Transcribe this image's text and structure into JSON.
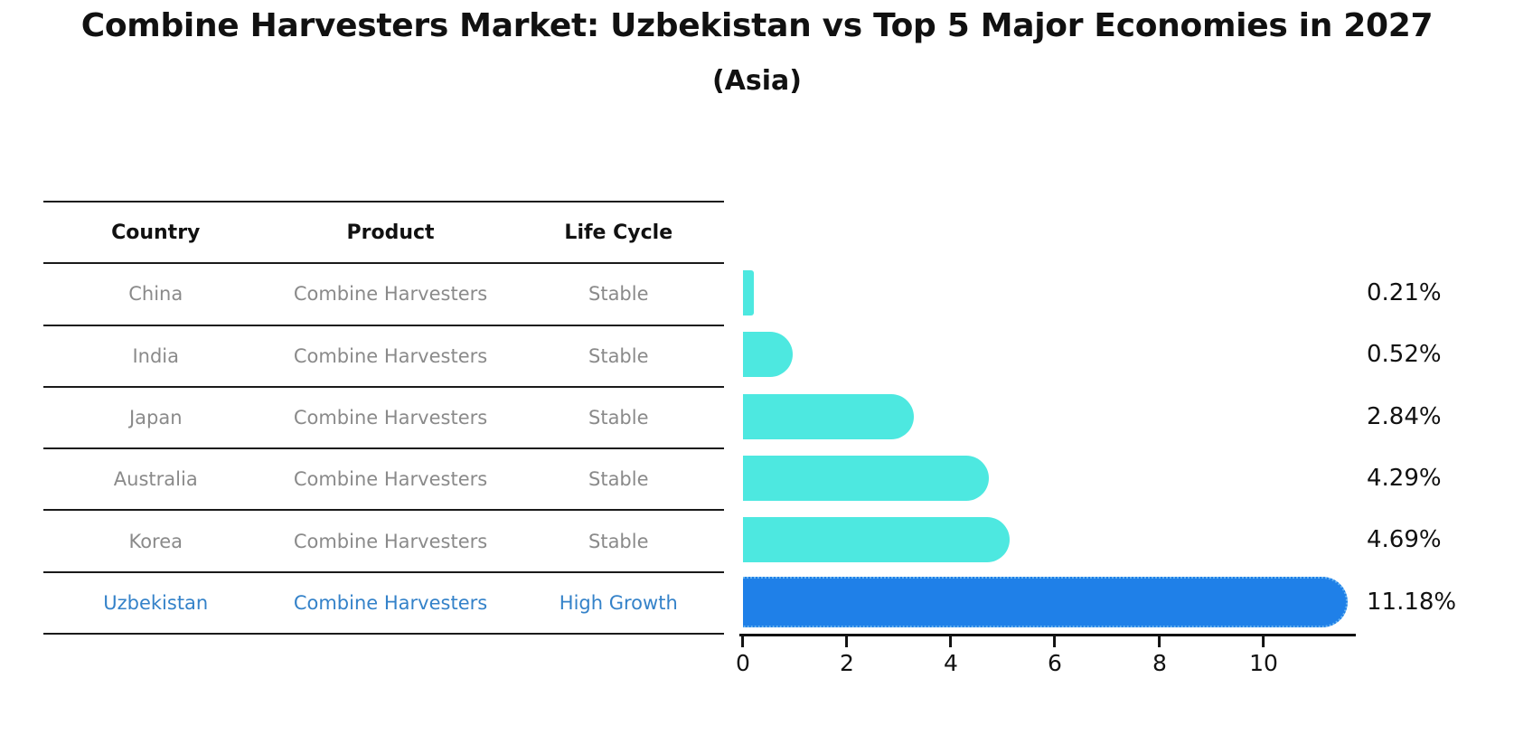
{
  "title": "Combine Harvesters Market: Uzbekistan vs Top 5 Major Economies in 2027",
  "subtitle": "(Asia)",
  "table": {
    "headers": {
      "country": "Country",
      "product": "Product",
      "life_cycle": "Life Cycle"
    },
    "rows": [
      {
        "country": "China",
        "product": "Combine Harvesters",
        "life_cycle": "Stable",
        "highlighted": false
      },
      {
        "country": "India",
        "product": "Combine Harvesters",
        "life_cycle": "Stable",
        "highlighted": false
      },
      {
        "country": "Japan",
        "product": "Combine Harvesters",
        "life_cycle": "Stable",
        "highlighted": false
      },
      {
        "country": "Australia",
        "product": "Combine Harvesters",
        "life_cycle": "Stable",
        "highlighted": false
      },
      {
        "country": "Korea",
        "product": "Combine Harvesters",
        "life_cycle": "Stable",
        "highlighted": false
      },
      {
        "country": "Uzbekistan",
        "product": "Combine Harvesters",
        "life_cycle": "High Growth",
        "highlighted": true
      }
    ]
  },
  "chart_data": {
    "type": "bar",
    "orientation": "horizontal",
    "title": "Combine Harvesters Market: Uzbekistan vs Top 5 Major Economies in 2027",
    "subtitle": "(Asia)",
    "categories": [
      "China",
      "India",
      "Japan",
      "Australia",
      "Korea",
      "Uzbekistan"
    ],
    "values": [
      0.21,
      0.52,
      2.84,
      4.29,
      4.69,
      11.18
    ],
    "value_labels": [
      "0.21%",
      "0.52%",
      "2.84%",
      "4.29%",
      "4.69%",
      "11.18%"
    ],
    "x_ticks": [
      "0",
      "2",
      "4",
      "6",
      "8",
      "10"
    ],
    "xlim": [
      0,
      11.7
    ],
    "grid": false,
    "legend": "none",
    "bar_color": "#4de8e0",
    "highlight_color": "#1f80e8",
    "highlight_border_color": "#6ab5f1",
    "highlight_index": 5
  },
  "colors": {
    "background": "#ffffff",
    "table_line": "#1a1a1a",
    "row_text": "#8a8a8a",
    "header_text": "#111111",
    "highlight_text": "#3482c9",
    "axis": "#111111"
  }
}
